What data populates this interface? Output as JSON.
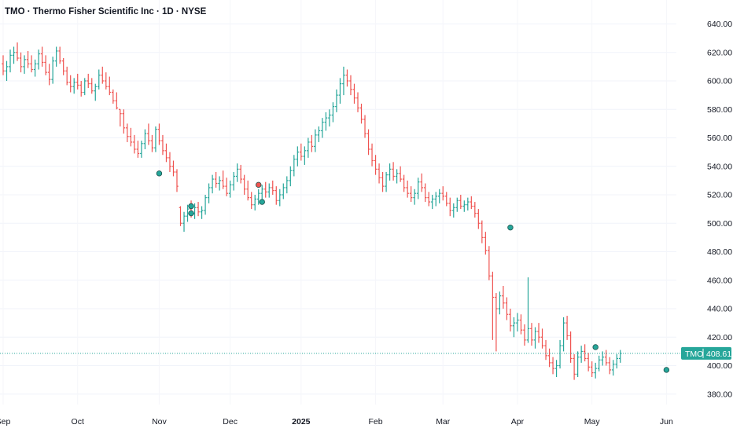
{
  "header": {
    "title": "TMO · Thermo Fisher Scientific Inc · 1D · NYSE"
  },
  "price_tag": {
    "symbol": "TMO",
    "value": "408.61"
  },
  "colors": {
    "up": "#26a69a",
    "down": "#ef5350",
    "last_line": "#26a69a",
    "tag_bg": "#26a69a"
  },
  "chart_data": {
    "type": "ohlc",
    "title": "TMO · Thermo Fisher Scientific Inc · 1D · NYSE",
    "ylim": [
      370,
      650
    ],
    "y_ticks": [
      380,
      400,
      420,
      440,
      460,
      480,
      500,
      520,
      540,
      560,
      580,
      600,
      620,
      640
    ],
    "y_tick_labels": [
      "380.00",
      "400.00",
      "420.00",
      "440.00",
      "460.00",
      "480.00",
      "500.00",
      "520.00",
      "540.00",
      "560.00",
      "580.00",
      "600.00",
      "620.00",
      "640.00"
    ],
    "x_ticks": [
      {
        "label": "Sep",
        "bar": 0,
        "bold": false
      },
      {
        "label": "Oct",
        "bar": 21,
        "bold": false
      },
      {
        "label": "Nov",
        "bar": 44,
        "bold": false
      },
      {
        "label": "Dec",
        "bar": 64,
        "bold": false
      },
      {
        "label": "2025",
        "bar": 84,
        "bold": true
      },
      {
        "label": "Feb",
        "bar": 105,
        "bold": false
      },
      {
        "label": "Mar",
        "bar": 124,
        "bold": false
      },
      {
        "label": "Apr",
        "bar": 145,
        "bold": false
      },
      {
        "label": "May",
        "bar": 166,
        "bold": false
      },
      {
        "label": "Jun",
        "bar": 187,
        "bold": false
      }
    ],
    "last_price": 408.61,
    "bars": [
      [
        612,
        618,
        604,
        607
      ],
      [
        607,
        614,
        600,
        610
      ],
      [
        610,
        622,
        606,
        618
      ],
      [
        618,
        624,
        612,
        620
      ],
      [
        620,
        627,
        614,
        616
      ],
      [
        616,
        620,
        606,
        610
      ],
      [
        610,
        618,
        605,
        615
      ],
      [
        615,
        621,
        609,
        612
      ],
      [
        612,
        618,
        606,
        608
      ],
      [
        608,
        615,
        603,
        612
      ],
      [
        612,
        622,
        608,
        619
      ],
      [
        619,
        624,
        610,
        613
      ],
      [
        613,
        618,
        604,
        606
      ],
      [
        606,
        612,
        597,
        601
      ],
      [
        601,
        617,
        598,
        614
      ],
      [
        614,
        624,
        610,
        621
      ],
      [
        621,
        624,
        612,
        614
      ],
      [
        614,
        616,
        604,
        607
      ],
      [
        607,
        610,
        597,
        599
      ],
      [
        599,
        604,
        592,
        596
      ],
      [
        596,
        602,
        591,
        599
      ],
      [
        599,
        605,
        594,
        597
      ],
      [
        597,
        600,
        589,
        592
      ],
      [
        592,
        602,
        590,
        600
      ],
      [
        600,
        605,
        595,
        598
      ],
      [
        598,
        602,
        591,
        593
      ],
      [
        593,
        598,
        586,
        596
      ],
      [
        596,
        608,
        594,
        604
      ],
      [
        604,
        610,
        598,
        600
      ],
      [
        600,
        606,
        594,
        596
      ],
      [
        596,
        603,
        590,
        592
      ],
      [
        592,
        594,
        584,
        586
      ],
      [
        586,
        592,
        580,
        581
      ],
      [
        580,
        580,
        568,
        577
      ],
      [
        577,
        580,
        563,
        567
      ],
      [
        567,
        570,
        557,
        561
      ],
      [
        561,
        567,
        554,
        557
      ],
      [
        557,
        562,
        549,
        552
      ],
      [
        552,
        558,
        546,
        549
      ],
      [
        549,
        558,
        546,
        556
      ],
      [
        556,
        566,
        552,
        563
      ],
      [
        563,
        570,
        555,
        558
      ],
      [
        558,
        562,
        550,
        553
      ],
      [
        553,
        568,
        550,
        566
      ],
      [
        566,
        570,
        555,
        558
      ],
      [
        558,
        562,
        548,
        551
      ],
      [
        551,
        556,
        543,
        546
      ],
      [
        546,
        550,
        536,
        540
      ],
      [
        540,
        544,
        533,
        536
      ],
      [
        536,
        538,
        522,
        526
      ],
      [
        511,
        512,
        498,
        500
      ],
      [
        500,
        508,
        494,
        505
      ],
      [
        505,
        513,
        501,
        510
      ],
      [
        510,
        516,
        504,
        507
      ],
      [
        507,
        514,
        503,
        511
      ],
      [
        511,
        515,
        505,
        508
      ],
      [
        508,
        512,
        503,
        509
      ],
      [
        509,
        520,
        506,
        518
      ],
      [
        518,
        528,
        514,
        525
      ],
      [
        525,
        534,
        521,
        531
      ],
      [
        531,
        536,
        525,
        528
      ],
      [
        528,
        533,
        523,
        530
      ],
      [
        530,
        537,
        524,
        526
      ],
      [
        526,
        532,
        519,
        521
      ],
      [
        521,
        530,
        518,
        527
      ],
      [
        527,
        536,
        523,
        533
      ],
      [
        533,
        542,
        529,
        538
      ],
      [
        538,
        541,
        528,
        531
      ],
      [
        531,
        534,
        520,
        524
      ],
      [
        524,
        530,
        516,
        518
      ],
      [
        518,
        522,
        510,
        513
      ],
      [
        513,
        520,
        509,
        517
      ],
      [
        517,
        524,
        513,
        521
      ],
      [
        521,
        527,
        517,
        524
      ],
      [
        524,
        529,
        518,
        522
      ],
      [
        522,
        528,
        518,
        525
      ],
      [
        525,
        530,
        520,
        523
      ],
      [
        523,
        526,
        513,
        516
      ],
      [
        516,
        524,
        512,
        520
      ],
      [
        520,
        528,
        517,
        525
      ],
      [
        525,
        533,
        521,
        530
      ],
      [
        530,
        540,
        526,
        537
      ],
      [
        537,
        548,
        533,
        545
      ],
      [
        545,
        554,
        540,
        550
      ],
      [
        550,
        556,
        544,
        547
      ],
      [
        547,
        554,
        541,
        551
      ],
      [
        551,
        560,
        546,
        557
      ],
      [
        557,
        562,
        550,
        554
      ],
      [
        554,
        566,
        550,
        562
      ],
      [
        562,
        568,
        557,
        565
      ],
      [
        565,
        574,
        560,
        571
      ],
      [
        571,
        578,
        565,
        574
      ],
      [
        574,
        580,
        568,
        576
      ],
      [
        576,
        585,
        571,
        582
      ],
      [
        582,
        594,
        578,
        590
      ],
      [
        590,
        602,
        584,
        598
      ],
      [
        598,
        610,
        590,
        604
      ],
      [
        604,
        608,
        596,
        600
      ],
      [
        600,
        604,
        590,
        594
      ],
      [
        594,
        598,
        584,
        588
      ],
      [
        588,
        592,
        578,
        581
      ],
      [
        581,
        584,
        570,
        573
      ],
      [
        573,
        576,
        560,
        563
      ],
      [
        563,
        566,
        548,
        552
      ],
      [
        552,
        556,
        540,
        544
      ],
      [
        544,
        548,
        534,
        538
      ],
      [
        538,
        542,
        528,
        532
      ],
      [
        532,
        536,
        522,
        526
      ],
      [
        526,
        536,
        522,
        534
      ],
      [
        534,
        542,
        530,
        538
      ],
      [
        538,
        543,
        530,
        533
      ],
      [
        533,
        538,
        528,
        535
      ],
      [
        535,
        540,
        529,
        531
      ],
      [
        531,
        534,
        522,
        525
      ],
      [
        525,
        530,
        518,
        521
      ],
      [
        521,
        526,
        515,
        518
      ],
      [
        518,
        524,
        513,
        521
      ],
      [
        521,
        532,
        517,
        529
      ],
      [
        529,
        535,
        522,
        525
      ],
      [
        525,
        528,
        515,
        518
      ],
      [
        518,
        522,
        512,
        515
      ],
      [
        515,
        520,
        510,
        517
      ],
      [
        517,
        522,
        512,
        519
      ],
      [
        519,
        524,
        514,
        521
      ],
      [
        521,
        526,
        516,
        519
      ],
      [
        519,
        522,
        512,
        514
      ],
      [
        514,
        518,
        505,
        509
      ],
      [
        509,
        514,
        504,
        511
      ],
      [
        511,
        518,
        508,
        516
      ],
      [
        516,
        520,
        510,
        512
      ],
      [
        512,
        516,
        508,
        513
      ],
      [
        513,
        518,
        509,
        515
      ],
      [
        515,
        519,
        510,
        512
      ],
      [
        512,
        515,
        504,
        507
      ],
      [
        507,
        510,
        496,
        500
      ],
      [
        500,
        502,
        486,
        490
      ],
      [
        490,
        494,
        478,
        481
      ],
      [
        481,
        484,
        460,
        463
      ],
      [
        463,
        466,
        418,
        448
      ],
      [
        448,
        451,
        410,
        440
      ],
      [
        440,
        452,
        436,
        449
      ],
      [
        449,
        456,
        440,
        444
      ],
      [
        444,
        448,
        432,
        436
      ],
      [
        436,
        440,
        424,
        428
      ],
      [
        428,
        434,
        420,
        430
      ],
      [
        430,
        437,
        424,
        432
      ],
      [
        432,
        436,
        422,
        425
      ],
      [
        425,
        429,
        414,
        418
      ],
      [
        418,
        462,
        416,
        426
      ],
      [
        426,
        430,
        414,
        418
      ],
      [
        418,
        427,
        412,
        424
      ],
      [
        424,
        430,
        416,
        420
      ],
      [
        420,
        426,
        412,
        414
      ],
      [
        414,
        418,
        404,
        407
      ],
      [
        407,
        412,
        399,
        402
      ],
      [
        402,
        406,
        394,
        398
      ],
      [
        398,
        404,
        392,
        400
      ],
      [
        400,
        418,
        398,
        414
      ],
      [
        414,
        434,
        410,
        430
      ],
      [
        430,
        435,
        418,
        421
      ],
      [
        421,
        424,
        402,
        405
      ],
      [
        405,
        408,
        390,
        394
      ],
      [
        394,
        410,
        392,
        406
      ],
      [
        406,
        414,
        402,
        410
      ],
      [
        410,
        415,
        403,
        405
      ],
      [
        405,
        409,
        396,
        399
      ],
      [
        399,
        403,
        392,
        395
      ],
      [
        395,
        402,
        391,
        398
      ],
      [
        398,
        407,
        396,
        404
      ],
      [
        404,
        410,
        400,
        406
      ],
      [
        406,
        411,
        400,
        402
      ],
      [
        402,
        406,
        394,
        397
      ],
      [
        397,
        404,
        393,
        401
      ],
      [
        401,
        408,
        398,
        405
      ],
      [
        405,
        411,
        402,
        408.61
      ]
    ],
    "markers": [
      {
        "bar": 44,
        "color": "#26a69a",
        "y": 535
      },
      {
        "bar": 53,
        "color": "#26a69a",
        "y": 512
      },
      {
        "bar": 53,
        "color": "#26a69a",
        "y": 507
      },
      {
        "bar": 72,
        "color": "#ef5350",
        "y": 527
      },
      {
        "bar": 73,
        "color": "#26a69a",
        "y": 515
      },
      {
        "bar": 143,
        "color": "#26a69a",
        "y": 497
      },
      {
        "bar": 167,
        "color": "#26a69a",
        "y": 413
      },
      {
        "bar": 187,
        "color": "#26a69a",
        "y": 397
      }
    ]
  }
}
